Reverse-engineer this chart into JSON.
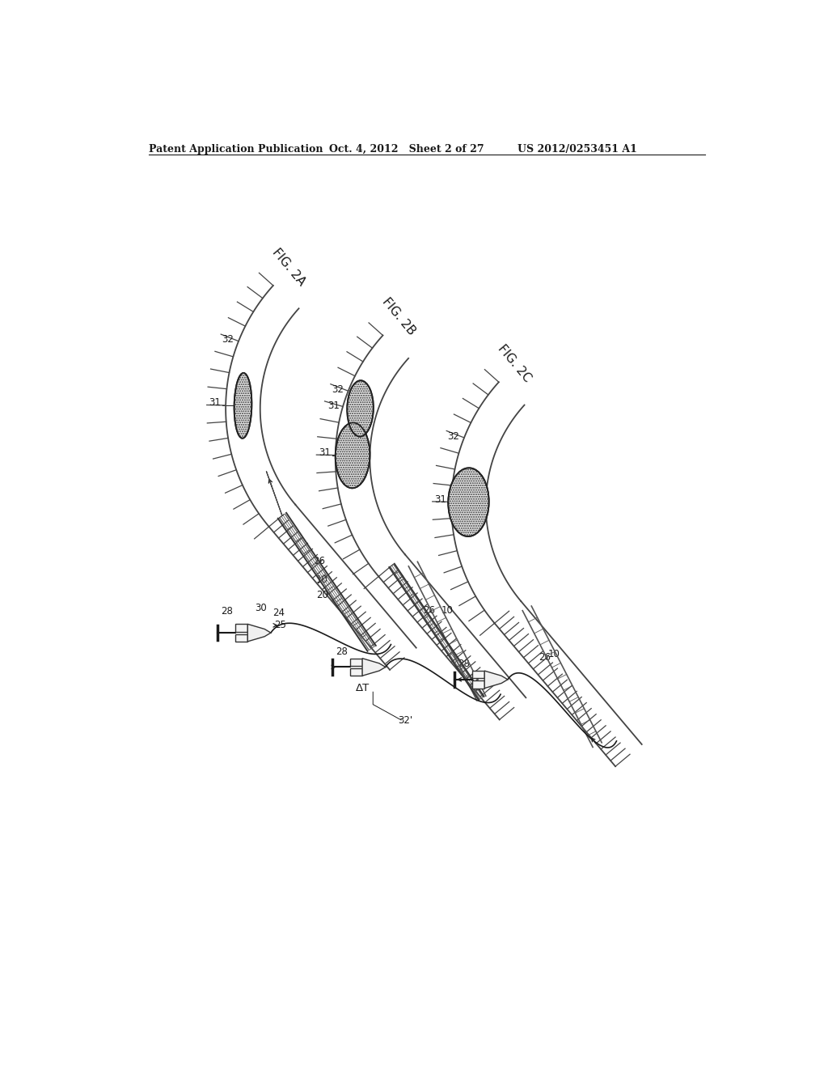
{
  "bg_color": "#ffffff",
  "line_color": "#1a1a1a",
  "header_left": "Patent Application Publication",
  "header_mid": "Oct. 4, 2012   Sheet 2 of 27",
  "header_right": "US 2012/0253451 A1",
  "fig_labels": [
    "FIG. 2A",
    "FIG. 2B",
    "FIG. 2C"
  ],
  "vessel_hatch_color": "#555555",
  "catheter_color": "#333333",
  "balloon_fill": "#e0e0e0",
  "box_fill": "#f5f5f5"
}
